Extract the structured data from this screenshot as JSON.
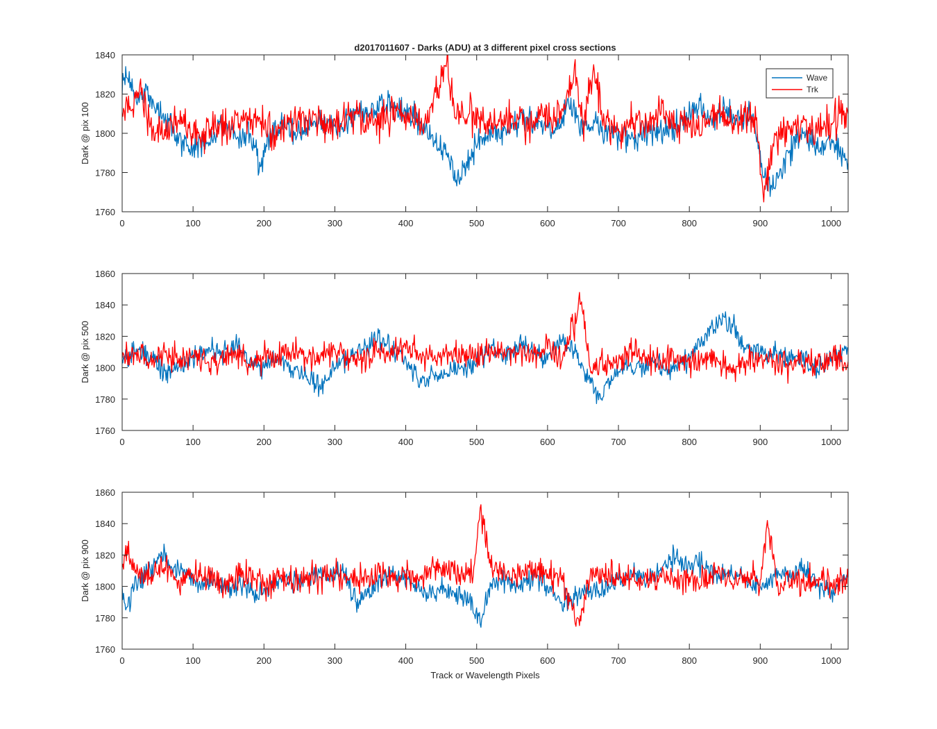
{
  "figure": {
    "title": "d2017011607 - Darks (ADU) at 3 different pixel cross sections",
    "xlabel": "Track or Wavelength Pixels"
  },
  "legend": {
    "placement": "top-right of first panel",
    "entries": [
      {
        "name": "Wave",
        "color": "#0072BD"
      },
      {
        "name": "Trk",
        "color": "#FF0000"
      }
    ]
  },
  "chart_data": [
    {
      "type": "line",
      "ylabel": "Dark @ pix 100",
      "xlim": [
        0,
        1024
      ],
      "ylim": [
        1760,
        1840
      ],
      "xticks": [
        0,
        100,
        200,
        300,
        400,
        500,
        600,
        700,
        800,
        900,
        1000
      ],
      "yticks": [
        1760,
        1780,
        1800,
        1820,
        1840
      ],
      "series": [
        {
          "name": "Wave",
          "color": "#0072BD",
          "x": [
            0,
            5,
            20,
            35,
            50,
            65,
            80,
            100,
            120,
            140,
            160,
            180,
            195,
            210,
            230,
            250,
            270,
            290,
            310,
            330,
            350,
            365,
            380,
            400,
            420,
            440,
            460,
            475,
            490,
            510,
            530,
            550,
            570,
            590,
            610,
            630,
            650,
            670,
            690,
            710,
            730,
            750,
            770,
            790,
            810,
            830,
            850,
            870,
            890,
            905,
            920,
            940,
            960,
            980,
            1000,
            1024
          ],
          "y": [
            1820,
            1834,
            1816,
            1822,
            1812,
            1805,
            1798,
            1792,
            1795,
            1803,
            1798,
            1800,
            1783,
            1800,
            1803,
            1800,
            1806,
            1805,
            1802,
            1811,
            1810,
            1817,
            1813,
            1812,
            1806,
            1795,
            1790,
            1776,
            1788,
            1798,
            1802,
            1805,
            1808,
            1806,
            1800,
            1815,
            1803,
            1805,
            1800,
            1796,
            1798,
            1803,
            1800,
            1806,
            1815,
            1808,
            1812,
            1806,
            1810,
            1778,
            1772,
            1790,
            1800,
            1792,
            1795,
            1785
          ]
        },
        {
          "name": "Trk",
          "color": "#FF0000",
          "x": [
            0,
            10,
            25,
            40,
            55,
            70,
            90,
            110,
            130,
            150,
            170,
            190,
            210,
            230,
            250,
            270,
            290,
            310,
            330,
            350,
            370,
            390,
            410,
            430,
            458,
            470,
            490,
            510,
            530,
            550,
            570,
            590,
            610,
            625,
            638,
            650,
            665,
            680,
            700,
            720,
            740,
            760,
            780,
            800,
            820,
            840,
            860,
            880,
            895,
            905,
            920,
            940,
            960,
            980,
            1000,
            1024
          ],
          "y": [
            1810,
            1812,
            1825,
            1805,
            1800,
            1806,
            1802,
            1798,
            1805,
            1803,
            1806,
            1808,
            1800,
            1803,
            1807,
            1810,
            1803,
            1806,
            1810,
            1805,
            1808,
            1812,
            1806,
            1805,
            1837,
            1808,
            1810,
            1806,
            1804,
            1809,
            1804,
            1809,
            1806,
            1812,
            1835,
            1804,
            1835,
            1806,
            1802,
            1808,
            1804,
            1810,
            1805,
            1803,
            1808,
            1812,
            1804,
            1806,
            1808,
            1765,
            1800,
            1802,
            1806,
            1800,
            1805,
            1810
          ]
        }
      ]
    },
    {
      "type": "line",
      "ylabel": "Dark @ pix 500",
      "xlim": [
        0,
        1024
      ],
      "ylim": [
        1760,
        1860
      ],
      "xticks": [
        0,
        100,
        200,
        300,
        400,
        500,
        600,
        700,
        800,
        900,
        1000
      ],
      "yticks": [
        1760,
        1780,
        1800,
        1820,
        1840,
        1860
      ],
      "series": [
        {
          "name": "Wave",
          "color": "#0072BD",
          "x": [
            0,
            20,
            40,
            60,
            80,
            100,
            120,
            140,
            160,
            180,
            200,
            220,
            240,
            260,
            280,
            300,
            320,
            340,
            360,
            380,
            400,
            420,
            440,
            460,
            480,
            500,
            520,
            540,
            560,
            580,
            600,
            620,
            640,
            660,
            675,
            690,
            710,
            730,
            750,
            770,
            790,
            810,
            830,
            850,
            860,
            880,
            900,
            920,
            940,
            960,
            980,
            1000,
            1024
          ],
          "y": [
            1805,
            1812,
            1808,
            1798,
            1800,
            1806,
            1812,
            1808,
            1815,
            1805,
            1800,
            1806,
            1798,
            1795,
            1786,
            1800,
            1806,
            1812,
            1818,
            1812,
            1806,
            1790,
            1795,
            1796,
            1800,
            1806,
            1812,
            1808,
            1815,
            1810,
            1805,
            1818,
            1810,
            1790,
            1780,
            1795,
            1802,
            1800,
            1803,
            1799,
            1802,
            1812,
            1825,
            1832,
            1828,
            1812,
            1810,
            1808,
            1806,
            1804,
            1800,
            1806,
            1812
          ]
        },
        {
          "name": "Trk",
          "color": "#FF0000",
          "x": [
            0,
            20,
            40,
            60,
            80,
            100,
            120,
            140,
            160,
            180,
            200,
            220,
            240,
            260,
            280,
            300,
            320,
            340,
            360,
            380,
            400,
            420,
            440,
            460,
            480,
            500,
            520,
            540,
            560,
            580,
            600,
            620,
            648,
            660,
            680,
            700,
            720,
            740,
            760,
            780,
            800,
            820,
            840,
            860,
            880,
            900,
            920,
            940,
            960,
            980,
            1000,
            1024
          ],
          "y": [
            1806,
            1810,
            1804,
            1810,
            1806,
            1808,
            1803,
            1806,
            1810,
            1802,
            1808,
            1806,
            1811,
            1805,
            1808,
            1812,
            1806,
            1804,
            1810,
            1808,
            1812,
            1809,
            1806,
            1810,
            1808,
            1806,
            1812,
            1808,
            1810,
            1806,
            1812,
            1804,
            1842,
            1800,
            1802,
            1804,
            1810,
            1806,
            1802,
            1806,
            1800,
            1806,
            1804,
            1800,
            1802,
            1806,
            1804,
            1801,
            1802,
            1805,
            1806,
            1804
          ]
        }
      ]
    },
    {
      "type": "line",
      "ylabel": "Dark @ pix 900",
      "xlim": [
        0,
        1024
      ],
      "ylim": [
        1760,
        1860
      ],
      "xticks": [
        0,
        100,
        200,
        300,
        400,
        500,
        600,
        700,
        800,
        900,
        1000
      ],
      "yticks": [
        1760,
        1780,
        1800,
        1820,
        1840,
        1860
      ],
      "series": [
        {
          "name": "Wave",
          "color": "#0072BD",
          "x": [
            0,
            5,
            20,
            40,
            55,
            70,
            90,
            110,
            130,
            150,
            170,
            190,
            210,
            230,
            250,
            270,
            290,
            310,
            330,
            350,
            370,
            390,
            410,
            430,
            450,
            470,
            490,
            505,
            520,
            540,
            560,
            580,
            600,
            620,
            640,
            660,
            680,
            700,
            720,
            740,
            760,
            780,
            800,
            820,
            840,
            860,
            880,
            900,
            920,
            940,
            960,
            980,
            1000,
            1024
          ],
          "y": [
            1800,
            1785,
            1802,
            1810,
            1822,
            1812,
            1808,
            1800,
            1804,
            1798,
            1801,
            1795,
            1800,
            1806,
            1802,
            1808,
            1806,
            1810,
            1790,
            1795,
            1808,
            1810,
            1802,
            1796,
            1798,
            1796,
            1792,
            1776,
            1800,
            1804,
            1800,
            1806,
            1800,
            1790,
            1794,
            1796,
            1798,
            1804,
            1808,
            1803,
            1812,
            1818,
            1815,
            1812,
            1806,
            1808,
            1803,
            1800,
            1806,
            1808,
            1812,
            1800,
            1796,
            1808
          ]
        },
        {
          "name": "Trk",
          "color": "#FF0000",
          "x": [
            0,
            5,
            20,
            40,
            60,
            80,
            100,
            120,
            140,
            160,
            180,
            200,
            220,
            240,
            260,
            280,
            300,
            320,
            340,
            360,
            380,
            400,
            420,
            440,
            460,
            480,
            495,
            505,
            520,
            540,
            560,
            580,
            600,
            620,
            645,
            660,
            680,
            700,
            720,
            740,
            760,
            780,
            800,
            820,
            840,
            860,
            880,
            900,
            910,
            925,
            940,
            960,
            980,
            1000,
            1024
          ],
          "y": [
            1812,
            1826,
            1808,
            1806,
            1812,
            1804,
            1808,
            1806,
            1802,
            1806,
            1810,
            1800,
            1806,
            1802,
            1804,
            1806,
            1808,
            1804,
            1806,
            1810,
            1806,
            1808,
            1806,
            1812,
            1810,
            1808,
            1806,
            1850,
            1812,
            1808,
            1806,
            1810,
            1808,
            1804,
            1775,
            1806,
            1808,
            1804,
            1806,
            1802,
            1806,
            1803,
            1806,
            1804,
            1808,
            1802,
            1806,
            1804,
            1842,
            1800,
            1806,
            1802,
            1804,
            1800,
            1806
          ]
        }
      ]
    }
  ]
}
